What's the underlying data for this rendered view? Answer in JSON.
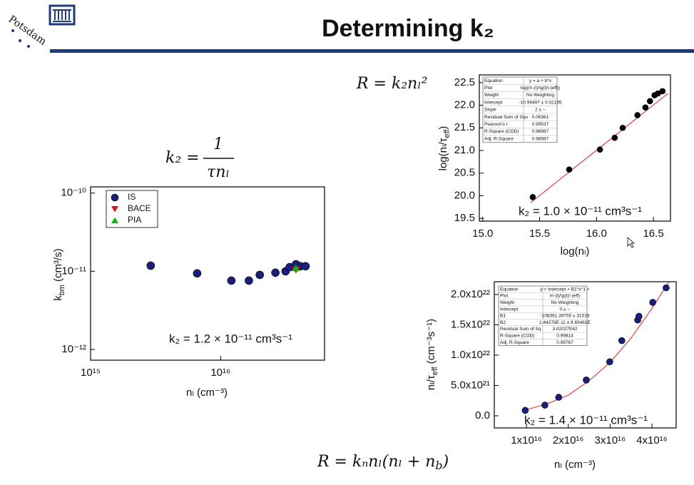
{
  "header": {
    "title": "Determining k₂",
    "logo_text": "Potsdam"
  },
  "formulas": {
    "top": "R = k₂nₗ²",
    "fraction": {
      "left": "k₂ =",
      "numerator": "1",
      "denominator": "τnₗ"
    },
    "bottom": [
      "R = kₙnₗ(nₗ + n",
      "b",
      ")"
    ]
  },
  "chart_data": [
    {
      "type": "scatter",
      "xscale": "log",
      "yscale": "log",
      "xlabel": "nₗ (cm⁻³)",
      "ylabel": [
        "k",
        "bm",
        " (cm³/s)"
      ],
      "xlim": [
        1000000000000000.0,
        6.3e+16
      ],
      "ylim": [
        7.3e-13,
        1.2e-10
      ],
      "xticks": [
        {
          "value": 1000000000000000.0,
          "label": "10¹⁵"
        },
        {
          "value": 1e+16,
          "label": "10¹⁶"
        }
      ],
      "yticks": [
        {
          "value": 1e-12,
          "label": "10⁻¹²"
        },
        {
          "value": 1e-11,
          "label": "10⁻¹¹"
        },
        {
          "value": 1e-10,
          "label": "10⁻¹⁰"
        }
      ],
      "legend": "upper left",
      "annotation": "k₂ = 1.2 × 10⁻¹¹ cm³s⁻¹",
      "series": [
        {
          "name": "IS",
          "color": "#1c1f7a",
          "marker": "circle",
          "x": [
            2900000000000000.0,
            6600000000000000.0,
            1.21e+16,
            1.65e+16,
            2e+16,
            2.64e+16,
            3.16e+16,
            3.4e+16,
            3.8e+16,
            4.1e+16,
            4.5e+16
          ],
          "values": [
            1.18e-11,
            9.4e-12,
            7.6e-12,
            7.6e-12,
            9e-12,
            9.6e-12,
            1e-11,
            1.13e-11,
            1.23e-11,
            1.16e-11,
            1.16e-11
          ]
        },
        {
          "name": "BACE",
          "color": "#e01010",
          "marker": "triangle-down",
          "x": [
            3.8e+16
          ],
          "values": [
            1.04e-11
          ]
        },
        {
          "name": "PIA",
          "color": "#12b012",
          "marker": "triangle-up",
          "x": [
            3.8e+16
          ],
          "values": [
            1.1e-11
          ]
        }
      ]
    },
    {
      "type": "scatter",
      "xlabel": "log(nₗ)",
      "ylabel": [
        "log(nₗ/τ",
        "eff",
        ")"
      ],
      "xlim": [
        14.97,
        16.65
      ],
      "ylim": [
        19.44,
        22.67
      ],
      "xticks": [
        {
          "value": 15,
          "label": "15.0"
        },
        15.5,
        {
          "value": 16,
          "label": "16.0"
        },
        16.5
      ],
      "yticks": [
        19.5,
        {
          "value": 20,
          "label": "20.0"
        },
        20.5,
        {
          "value": 21,
          "label": "21.0"
        },
        21.5,
        {
          "value": 22,
          "label": "22.0"
        },
        22.5
      ],
      "annotation": "k₂ = 1.0 × 10⁻¹¹ cm³s⁻¹",
      "color": "#000000",
      "x": [
        15.44,
        15.76,
        16.03,
        16.16,
        16.23,
        16.36,
        16.43,
        16.47,
        16.51,
        16.54,
        16.58
      ],
      "values": [
        19.97,
        20.58,
        21.02,
        21.28,
        21.5,
        21.78,
        21.95,
        22.09,
        22.22,
        22.26,
        22.31
      ],
      "fit": {
        "color": "#e02020",
        "x": [
          15.42,
          16.63
        ],
        "values": [
          19.845,
          22.265
        ]
      },
      "stats_table": {
        "rows": [
          [
            "Equation",
            "y = a + b*x"
          ],
          [
            "Plot",
            "log(n\\-(l)/\\g(t)\\-(eff))"
          ],
          [
            "Weight",
            "No Weighting"
          ],
          [
            "Intercept",
            "-10.99497 ± 0.02195"
          ],
          [
            "Slope",
            "2 ± --"
          ],
          [
            "Residual Sum of Squ",
            "0.06361"
          ],
          [
            "Pearson's r",
            "0.99537"
          ],
          [
            "R-Square (COD)",
            "0.98987"
          ],
          [
            "Adj. R-Square",
            "0.98987"
          ]
        ]
      }
    },
    {
      "type": "scatter",
      "xlabel": "nₗ (cm⁻³)",
      "ylabel": [
        "nₗ/τ",
        "eff",
        " (cm⁻³s⁻¹)"
      ],
      "xlim": [
        2300000000000000.0,
        4.58e+16
      ],
      "ylim": [
        -2e+21,
        2.21e+22
      ],
      "xticks": [
        {
          "value": 1e+16,
          "label": "1x10¹⁶"
        },
        {
          "value": 2e+16,
          "label": "2x10¹⁶"
        },
        {
          "value": 3e+16,
          "label": "3x10¹⁶"
        },
        {
          "value": 4e+16,
          "label": "4x10¹⁶"
        }
      ],
      "yticks": [
        {
          "value": 0,
          "label": "0.0"
        },
        {
          "value": 5e+21,
          "label": "5.0x10²¹"
        },
        {
          "value": 1e+22,
          "label": "1.0x10²²"
        },
        {
          "value": 1.5e+22,
          "label": "1.5x10²²"
        },
        {
          "value": 2e+22,
          "label": "2.0x10²²"
        }
      ],
      "annotation": "k₂ = 1.4 × 10⁻¹¹ cm³s⁻¹",
      "color": "#1c1f7a",
      "x": [
        9700000000000000.0,
        1.44e+16,
        1.77e+16,
        2.43e+16,
        2.99e+16,
        3.28e+16,
        3.66e+16,
        3.69e+16,
        4.02e+16,
        4.34e+16
      ],
      "values": [
        9e+20,
        1.76e+21,
        3.06e+21,
        5.9e+21,
        8.9e+21,
        1.24e+22,
        1.58e+22,
        1.64e+22,
        1.87e+22,
        2.11e+22
      ],
      "fit": {
        "color": "#e02020",
        "x": [
          9000000000000000.0,
          1.5e+16,
          2e+16,
          2.5e+16,
          3e+16,
          3.5e+16,
          4e+16,
          4.4e+16
        ],
        "values": [
          8e+20,
          2e+21,
          3.4e+21,
          5.8e+21,
          8.8e+21,
          1.28e+22,
          1.77e+22,
          2.2e+22
        ]
      },
      "stats_table": {
        "rows": [
          [
            "Equation",
            "y = Intercept + B1*x^1 +"
          ],
          [
            "Plot",
            "n\\-(l)/\\g(t)\\-(eff)"
          ],
          [
            "Weight",
            "No Weighting"
          ],
          [
            "Intercept",
            "0 ± --"
          ],
          [
            "B1",
            "-108361.39755 ± 31019"
          ],
          [
            "B2",
            "1.44278E-11 ± 8.65461E"
          ],
          [
            "Residual Sum of Sq",
            "3.02027E42"
          ],
          [
            "R-Square (COD)",
            "0.99814"
          ],
          [
            "Adj. R-Square",
            "0.99767"
          ]
        ]
      }
    }
  ]
}
